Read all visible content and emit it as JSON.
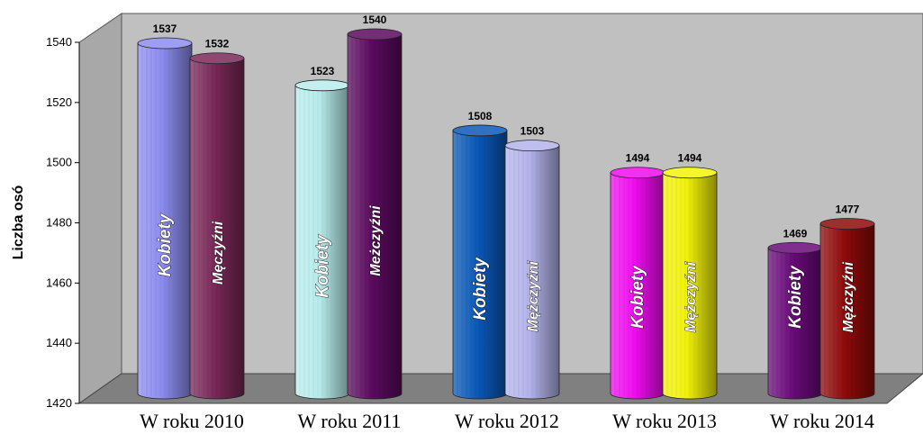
{
  "chart_data": {
    "type": "bar",
    "ylabel": "Liczba osó",
    "ylim": [
      1420,
      1540
    ],
    "yticks": [
      1420,
      1440,
      1460,
      1480,
      1500,
      1520,
      1540
    ],
    "categories": [
      "W roku 2010",
      "W roku 2011",
      "W roku 2012",
      "W roku 2013",
      "W roku 2014"
    ],
    "series": [
      {
        "name": "Kobiety",
        "values": [
          1537,
          1523,
          1508,
          1494,
          1469
        ]
      },
      {
        "name": "Mężczyźni",
        "values": [
          1532,
          1540,
          1503,
          1494,
          1477
        ]
      }
    ],
    "bar_colors": [
      [
        "#8c8cf0",
        "#7a2858"
      ],
      [
        "#b8ecec",
        "#5a0a5e"
      ],
      [
        "#0a58b8",
        "#b4b4ec"
      ],
      [
        "#f00cf0",
        "#f2f20a"
      ],
      [
        "#6a0a7a",
        "#8e0a0a"
      ]
    ],
    "bar_labels": [
      [
        "Kobiety",
        "Męczyźni"
      ],
      [
        "Kobiety",
        "Meżczyźni"
      ],
      [
        "Kobiety",
        "Mężczyźni"
      ],
      [
        "Kobiety",
        "Mężczyźni"
      ],
      [
        "Kobiety",
        "Mężczyźni"
      ]
    ],
    "background_color": "#c0c0c0",
    "floor_color": "#808080",
    "grid": false,
    "legend": "none"
  }
}
